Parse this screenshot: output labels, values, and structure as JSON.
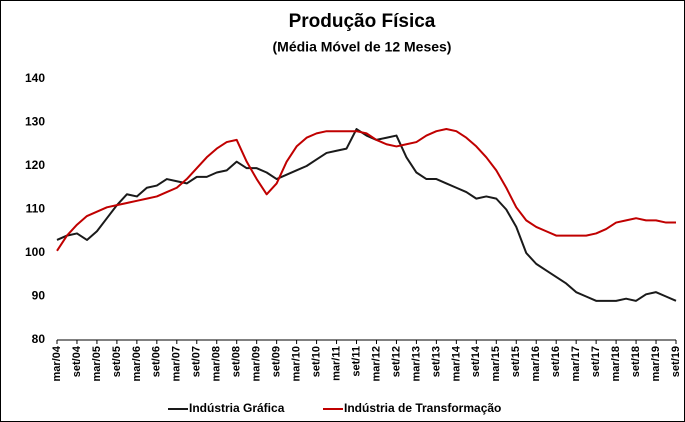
{
  "chart_data": {
    "type": "line",
    "title": "Produção Física",
    "subtitle": "(Média Móvel de 12 Meses)",
    "categories": [
      "mar/04",
      null,
      "set/04",
      null,
      "mar/05",
      null,
      "set/05",
      null,
      "mar/06",
      null,
      "set/06",
      null,
      "mar/07",
      null,
      "set/07",
      null,
      "mar/08",
      null,
      "set/08",
      null,
      "mar/09",
      null,
      "set/09",
      null,
      "mar/10",
      null,
      "set/10",
      null,
      "mar/11",
      null,
      "set/11",
      null,
      "mar/12",
      null,
      "set/12",
      null,
      "mar/13",
      null,
      "set/13",
      null,
      "mar/14",
      null,
      "set/14",
      null,
      "mar/15",
      null,
      "set/15",
      null,
      "mar/16",
      null,
      "set/16",
      null,
      "mar/17",
      null,
      "set/17",
      null,
      "mar/18",
      null,
      "set/18",
      null,
      "mar/19",
      null,
      "set/19"
    ],
    "series": [
      {
        "name": "Indústria Gráfica",
        "color": "#1a1a1a",
        "values": [
          103,
          104,
          104.5,
          103,
          105,
          108,
          111,
          113.5,
          113,
          115,
          115.5,
          117,
          116.5,
          116,
          117.5,
          117.5,
          118.5,
          119,
          121,
          119.5,
          119.5,
          118.5,
          117,
          118,
          119,
          120,
          121.5,
          123,
          123.5,
          124,
          128.5,
          127,
          126,
          126.5,
          127,
          122,
          118.5,
          117,
          117,
          116,
          115,
          114,
          112.5,
          113,
          112.5,
          110,
          106,
          100,
          97.5,
          96,
          94.5,
          93,
          91,
          90,
          89,
          89,
          89,
          89.5,
          89,
          90.5,
          91,
          90,
          89
        ]
      },
      {
        "name": "Indústria de Transformação",
        "color": "#c00000",
        "values": [
          100.5,
          104,
          106.5,
          108.5,
          109.5,
          110.5,
          111,
          111.5,
          112,
          112.5,
          113,
          114,
          115,
          117,
          119.5,
          122,
          124,
          125.5,
          126,
          121,
          117,
          113.5,
          116,
          121,
          124.5,
          126.5,
          127.5,
          128,
          128,
          128,
          128,
          127.5,
          126,
          125,
          124.5,
          125,
          125.5,
          127,
          128,
          128.5,
          128,
          126.5,
          124.5,
          122,
          119,
          115,
          110.5,
          107.5,
          106,
          105,
          104,
          104,
          104,
          104,
          104.5,
          105.5,
          107,
          107.5,
          108,
          107.5,
          107.5,
          107,
          107
        ]
      }
    ],
    "ylim": [
      80,
      140
    ],
    "yticks": [
      80,
      90,
      100,
      110,
      120,
      130,
      140
    ],
    "grid": false,
    "legend": "bottom"
  }
}
